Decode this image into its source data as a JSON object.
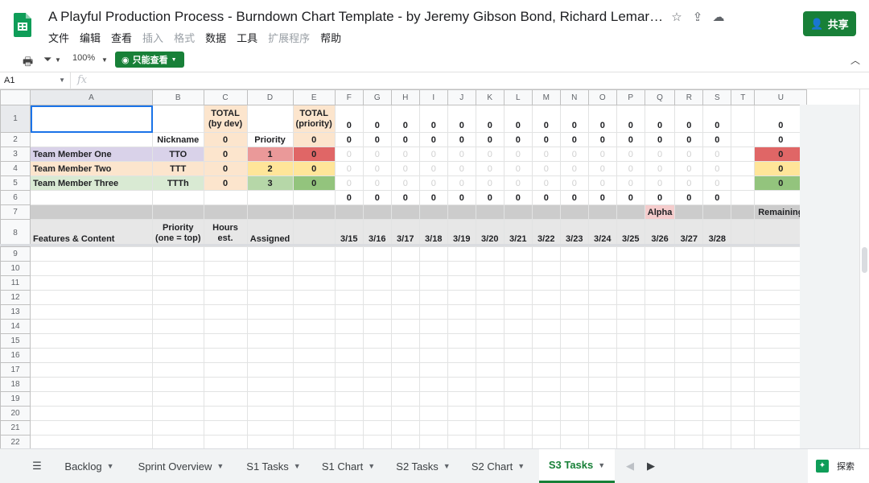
{
  "doc_title": "A Playful Production Process - Burndown Chart Template - by Jeremy Gibson Bond, Richard Lemarchand, Pe...",
  "menu": [
    "文件",
    "编辑",
    "查看",
    "插入",
    "格式",
    "数据",
    "工具",
    "扩展程序",
    "帮助"
  ],
  "menu_disabled": [
    "插入",
    "格式",
    "扩展程序"
  ],
  "share_label": "共享",
  "toolbar": {
    "zoom": "100%",
    "view_only": "只能查看"
  },
  "formula_bar": {
    "cell_ref": "A1",
    "fx": "fx"
  },
  "columns": [
    "A",
    "B",
    "C",
    "D",
    "E",
    "F",
    "G",
    "H",
    "I",
    "J",
    "K",
    "L",
    "M",
    "N",
    "O",
    "P",
    "Q",
    "R",
    "S",
    "T",
    "U"
  ],
  "row_numbers": [
    "1",
    "2",
    "3",
    "4",
    "5",
    "6",
    "7",
    "8",
    "9",
    "10",
    "11",
    "12",
    "13",
    "14",
    "15",
    "16",
    "17",
    "18",
    "19",
    "20",
    "21",
    "22"
  ],
  "cells": {
    "C1": "TOTAL\n(by dev)",
    "E1": "TOTAL\n(priority)",
    "B2": "Nickname",
    "D2": "Priority",
    "A3": "Team Member One",
    "B3": "TTO",
    "C3": "0",
    "D3": "1",
    "E3": "0",
    "A4": "Team Member Two",
    "B4": "TTT",
    "C4": "0",
    "D4": "2",
    "E4": "0",
    "A5": "Team Member Three",
    "B5": "TTTh",
    "C5": "0",
    "D5": "3",
    "E5": "0",
    "C2": "0",
    "E2": "0",
    "Q7": "Alpha",
    "U7": "Remaining",
    "A8": "Features & Content",
    "B8": "Priority\n(one = top)",
    "C8": "Hours\nest.",
    "D8": "Assigned",
    "U1": "0",
    "U2": "0",
    "U3": "0",
    "U4": "0",
    "U5": "0"
  },
  "dates": [
    "3/15",
    "3/16",
    "3/17",
    "3/18",
    "3/19",
    "3/20",
    "3/21",
    "3/22",
    "3/23",
    "3/24",
    "3/25",
    "3/26",
    "3/27",
    "3/28"
  ],
  "zero_value": "0",
  "sheet_tabs": [
    "Backlog",
    "Sprint Overview",
    "S1 Tasks",
    "S1 Chart",
    "S2 Tasks",
    "S2 Chart",
    "S3 Tasks"
  ],
  "active_tab": "S3 Tasks",
  "explore_label": "探索"
}
